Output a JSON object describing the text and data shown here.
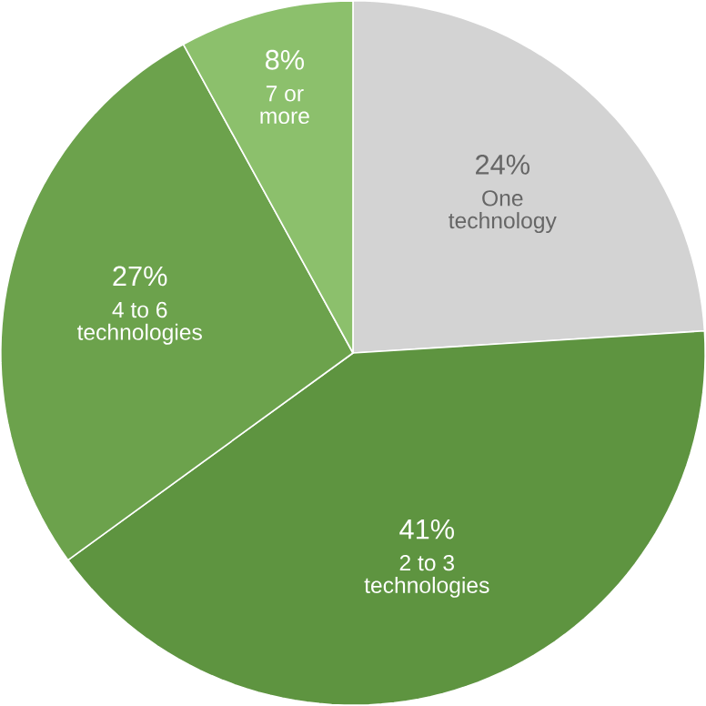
{
  "chart_data": {
    "type": "pie",
    "categories": [
      "One technology",
      "2 to 3 technologies",
      "4 to 6 technologies",
      "7 or more"
    ],
    "values": [
      24,
      41,
      27,
      8
    ],
    "value_labels": [
      "24%",
      "41%",
      "27%",
      "8%"
    ],
    "colors": [
      "#d3d3d3",
      "#5e9440",
      "#6ca24c",
      "#8cc06c"
    ]
  }
}
